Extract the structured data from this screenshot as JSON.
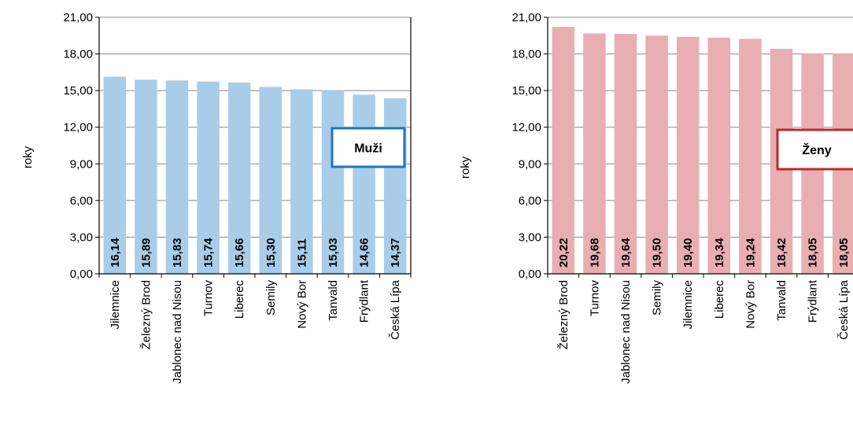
{
  "chart_data": [
    {
      "type": "bar",
      "badge": "Muži",
      "bar_color": "#A9CDE8",
      "badge_border_color": "#1F77B8",
      "ylabel": "roky",
      "ylim": [
        0,
        21
      ],
      "yticks": [
        "0,00",
        "3,00",
        "6,00",
        "9,00",
        "12,00",
        "15,00",
        "18,00",
        "21,00"
      ],
      "grid": true,
      "categories": [
        "Jilemnice",
        "Železný Brod",
        "Jablonec nad Nisou",
        "Turnov",
        "Liberec",
        "Semily",
        "Nový Bor",
        "Tanvald",
        "Frýdlant",
        "Česká Lípa"
      ],
      "values": [
        16.14,
        15.89,
        15.83,
        15.74,
        15.66,
        15.3,
        15.11,
        15.03,
        14.66,
        14.37
      ],
      "value_labels": [
        "16,14",
        "15,89",
        "15,83",
        "15,74",
        "15,66",
        "15,30",
        "15,11",
        "15,03",
        "14,66",
        "14,37"
      ]
    },
    {
      "type": "bar",
      "badge": "Ženy",
      "bar_color": "#E8AEB2",
      "badge_border_color": "#C0282D",
      "ylabel": "roky",
      "ylim": [
        0,
        21
      ],
      "yticks": [
        "0,00",
        "3,00",
        "6,00",
        "9,00",
        "12,00",
        "15,00",
        "18,00",
        "21,00"
      ],
      "grid": true,
      "categories": [
        "Železný Brod",
        "Turnov",
        "Jablonec nad Nisou",
        "Semily",
        "Jilemnice",
        "Liberec",
        "Nový Bor",
        "Tanvald",
        "Frýdlant",
        "Česká Lípa"
      ],
      "values": [
        20.22,
        19.68,
        19.64,
        19.5,
        19.4,
        19.34,
        19.24,
        18.42,
        18.05,
        18.05
      ],
      "value_labels": [
        "20,22",
        "19,68",
        "19,64",
        "19,50",
        "19,40",
        "19,34",
        "19,24",
        "18,42",
        "18,05",
        "18,05"
      ]
    }
  ]
}
